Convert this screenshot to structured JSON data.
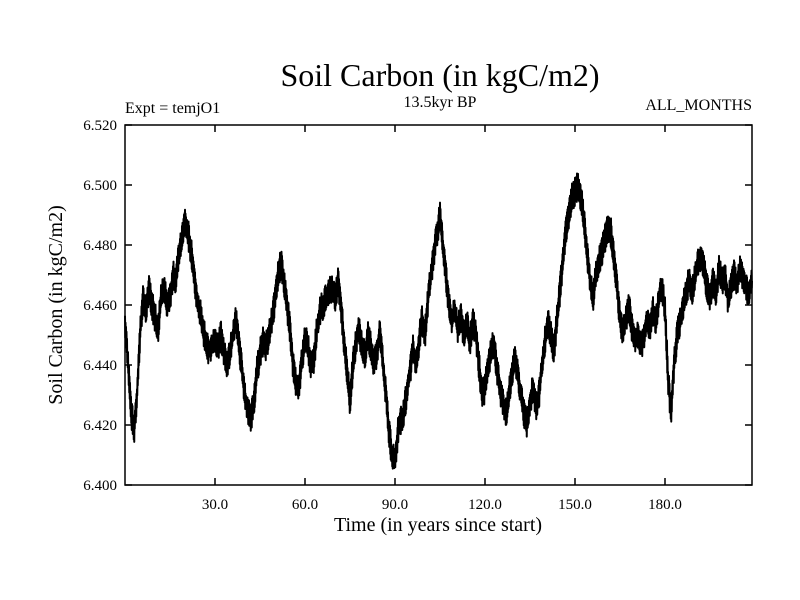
{
  "chart_data": {
    "type": "line",
    "title": "Soil Carbon (in kgC/m2)",
    "subtitle_left": "Expt = temjO1",
    "subtitle_center": "13.5kyr BP",
    "subtitle_right": "ALL_MONTHS",
    "xlabel": "Time (in years since start)",
    "ylabel": "Soil Carbon (in kgC/m2)",
    "xlim": [
      0,
      209
    ],
    "ylim": [
      6.4,
      6.52
    ],
    "xticks": [
      30,
      60,
      90,
      120,
      150,
      180
    ],
    "xtick_labels": [
      "30.0",
      "60.0",
      "90.0",
      "120.0",
      "150.0",
      "180.0"
    ],
    "yticks": [
      6.4,
      6.42,
      6.44,
      6.46,
      6.48,
      6.5,
      6.52
    ],
    "ytick_labels": [
      "6.400",
      "6.420",
      "6.440",
      "6.460",
      "6.480",
      "6.500",
      "6.520"
    ],
    "series": [
      {
        "name": "Soil Carbon",
        "x": [
          0,
          1,
          2,
          3,
          4,
          5,
          6,
          7,
          8,
          9,
          10,
          11,
          12,
          13,
          14,
          15,
          16,
          17,
          18,
          19,
          20,
          21,
          22,
          23,
          24,
          25,
          26,
          27,
          28,
          29,
          30,
          31,
          32,
          33,
          34,
          35,
          36,
          37,
          38,
          39,
          40,
          41,
          42,
          43,
          44,
          45,
          46,
          47,
          48,
          49,
          50,
          51,
          52,
          53,
          54,
          55,
          56,
          57,
          58,
          59,
          60,
          61,
          62,
          63,
          64,
          65,
          66,
          67,
          68,
          69,
          70,
          71,
          72,
          73,
          74,
          75,
          76,
          77,
          78,
          79,
          80,
          81,
          82,
          83,
          84,
          85,
          86,
          87,
          88,
          89,
          90,
          91,
          92,
          93,
          94,
          95,
          96,
          97,
          98,
          99,
          100,
          101,
          102,
          103,
          104,
          105,
          106,
          107,
          108,
          109,
          110,
          111,
          112,
          113,
          114,
          115,
          116,
          117,
          118,
          119,
          120,
          121,
          122,
          123,
          124,
          125,
          126,
          127,
          128,
          129,
          130,
          131,
          132,
          133,
          134,
          135,
          136,
          137,
          138,
          139,
          140,
          141,
          142,
          143,
          144,
          145,
          146,
          147,
          148,
          149,
          150,
          151,
          152,
          153,
          154,
          155,
          156,
          157,
          158,
          159,
          160,
          161,
          162,
          163,
          164,
          165,
          166,
          167,
          168,
          169,
          170,
          171,
          172,
          173,
          174,
          175,
          176,
          177,
          178,
          179,
          180,
          181,
          182,
          183,
          184,
          185,
          186,
          187,
          188,
          189,
          190,
          191,
          192,
          193,
          194,
          195,
          196,
          197,
          198,
          199,
          200,
          201,
          202,
          203,
          204,
          205,
          206,
          207,
          208,
          209
        ],
        "y": [
          6.455,
          6.44,
          6.425,
          6.418,
          6.43,
          6.45,
          6.462,
          6.458,
          6.465,
          6.46,
          6.456,
          6.452,
          6.462,
          6.466,
          6.46,
          6.462,
          6.47,
          6.468,
          6.478,
          6.482,
          6.488,
          6.484,
          6.478,
          6.47,
          6.462,
          6.458,
          6.452,
          6.448,
          6.444,
          6.447,
          6.449,
          6.446,
          6.45,
          6.444,
          6.44,
          6.444,
          6.45,
          6.455,
          6.447,
          6.438,
          6.43,
          6.424,
          6.422,
          6.428,
          6.438,
          6.444,
          6.448,
          6.446,
          6.45,
          6.455,
          6.462,
          6.47,
          6.474,
          6.468,
          6.46,
          6.452,
          6.44,
          6.434,
          6.432,
          6.442,
          6.449,
          6.446,
          6.44,
          6.442,
          6.452,
          6.458,
          6.46,
          6.462,
          6.464,
          6.466,
          6.462,
          6.468,
          6.46,
          6.448,
          6.438,
          6.428,
          6.44,
          6.448,
          6.452,
          6.446,
          6.443,
          6.45,
          6.446,
          6.44,
          6.444,
          6.452,
          6.44,
          6.43,
          6.418,
          6.41,
          6.408,
          6.418,
          6.422,
          6.424,
          6.432,
          6.438,
          6.445,
          6.44,
          6.448,
          6.455,
          6.45,
          6.462,
          6.47,
          6.478,
          6.484,
          6.49,
          6.48,
          6.47,
          6.46,
          6.455,
          6.458,
          6.452,
          6.456,
          6.45,
          6.454,
          6.448,
          6.455,
          6.45,
          6.44,
          6.43,
          6.432,
          6.44,
          6.444,
          6.448,
          6.438,
          6.432,
          6.428,
          6.424,
          6.43,
          6.438,
          6.442,
          6.436,
          6.43,
          6.424,
          6.42,
          6.428,
          6.432,
          6.426,
          6.43,
          6.44,
          6.448,
          6.455,
          6.45,
          6.445,
          6.455,
          6.465,
          6.475,
          6.485,
          6.49,
          6.496,
          6.498,
          6.5,
          6.496,
          6.488,
          6.478,
          6.468,
          6.462,
          6.47,
          6.475,
          6.478,
          6.482,
          6.486,
          6.484,
          6.476,
          6.466,
          6.456,
          6.45,
          6.456,
          6.46,
          6.452,
          6.448,
          6.45,
          6.446,
          6.45,
          6.455,
          6.452,
          6.458,
          6.454,
          6.462,
          6.466,
          6.458,
          6.436,
          6.424,
          6.44,
          6.45,
          6.454,
          6.46,
          6.464,
          6.468,
          6.464,
          6.47,
          6.474,
          6.476,
          6.472,
          6.466,
          6.462,
          6.468,
          6.464,
          6.472,
          6.468,
          6.47,
          6.462,
          6.466,
          6.47,
          6.468,
          6.472,
          6.47,
          6.466,
          6.464,
          6.468
        ]
      }
    ]
  }
}
